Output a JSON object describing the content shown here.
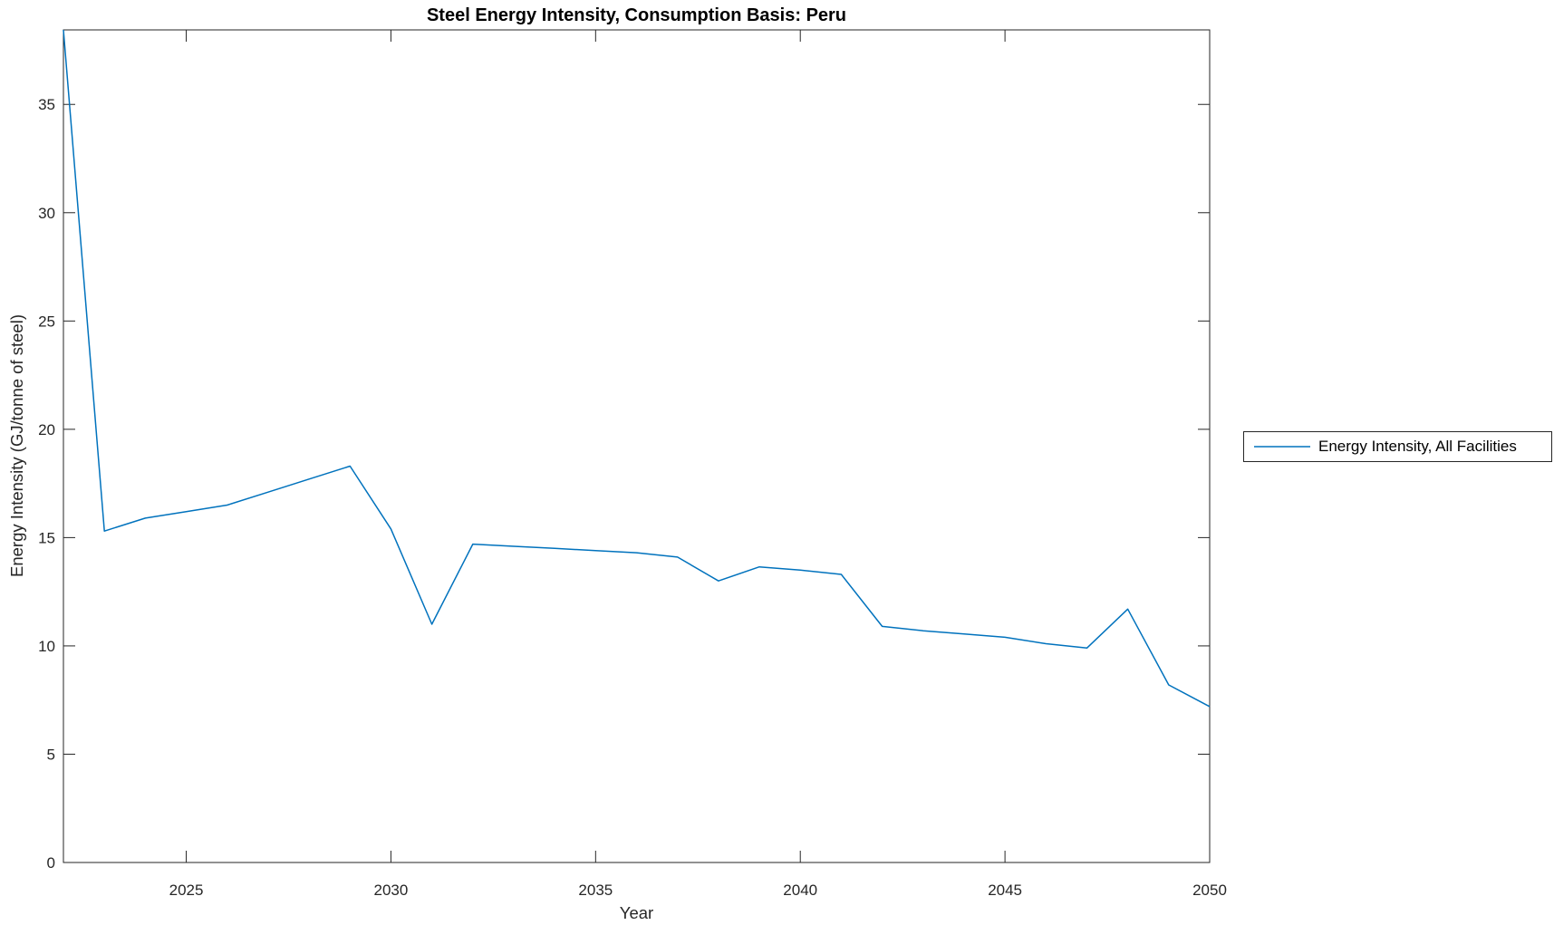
{
  "figure": {
    "title": "Steel Energy Intensity, Consumption Basis: Peru",
    "xlabel": "Year",
    "ylabel": "Energy Intensity (GJ/tonne of steel)"
  },
  "legend": {
    "position": "right-outside-center",
    "items": [
      {
        "label": "Energy Intensity, All Facilities",
        "color": "#0072BD"
      }
    ]
  },
  "colors": {
    "line": "#0072BD",
    "axis": "#262626",
    "background": "#ffffff",
    "title_text": "#000000"
  },
  "chart_data": {
    "type": "line",
    "title": "Steel Energy Intensity, Consumption Basis: Peru",
    "xlabel": "Year",
    "ylabel": "Energy Intensity (GJ/tonne of steel)",
    "xlim": [
      2022,
      2050
    ],
    "ylim": [
      0,
      38.44
    ],
    "xticks": [
      2025,
      2030,
      2035,
      2040,
      2045,
      2050
    ],
    "yticks": [
      0,
      5,
      10,
      15,
      20,
      25,
      30,
      35
    ],
    "grid": false,
    "box": true,
    "legend_position": "eastoutside",
    "series": [
      {
        "name": "Energy Intensity, All Facilities",
        "color": "#0072BD",
        "x": [
          2022,
          2023,
          2024,
          2025,
          2026,
          2027,
          2028,
          2029,
          2030,
          2031,
          2032,
          2033,
          2034,
          2035,
          2036,
          2037,
          2038,
          2039,
          2040,
          2041,
          2042,
          2043,
          2044,
          2045,
          2046,
          2047,
          2048,
          2049,
          2050
        ],
        "y": [
          38.44,
          15.3,
          15.9,
          16.2,
          16.5,
          17.1,
          17.7,
          18.3,
          15.4,
          11.0,
          14.7,
          14.6,
          14.5,
          14.4,
          14.3,
          14.1,
          13.0,
          13.65,
          13.5,
          13.3,
          10.9,
          10.7,
          10.55,
          10.4,
          10.1,
          9.9,
          11.7,
          8.2,
          7.2
        ]
      }
    ]
  }
}
